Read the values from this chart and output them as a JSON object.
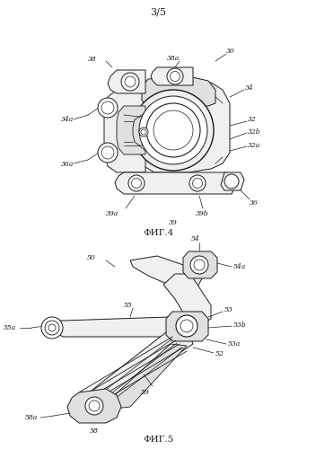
{
  "background_color": "#ffffff",
  "page_label": "3/5",
  "fig4_label": "ФИГ.4",
  "fig5_label": "ФИГ.5",
  "line_color": "#1a1a1a",
  "fill_light": "#f0f0f0",
  "fill_mid": "#e0e0e0",
  "fill_dark": "#c8c8c8"
}
